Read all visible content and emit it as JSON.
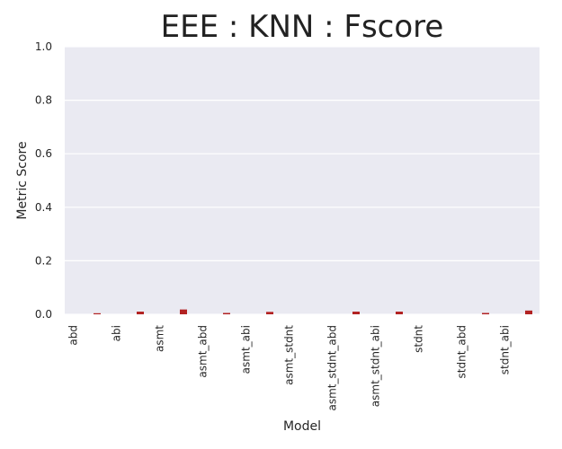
{
  "chart_data": {
    "type": "bar",
    "title": "EEE : KNN : Fscore",
    "xlabel": "Model",
    "ylabel": "Metric Score",
    "categories": [
      "abd",
      "abi",
      "asmt",
      "asmt_abd",
      "asmt_abi",
      "asmt_stdnt",
      "asmt_stdnt_abd",
      "asmt_stdnt_abi",
      "stdnt",
      "stdnt_abd",
      "stdnt_abi"
    ],
    "values": [
      0.004,
      0.01,
      0.018,
      0.005,
      0.009,
      0.0,
      0.01,
      0.01,
      0.0,
      0.005,
      0.014
    ],
    "ylim": [
      0,
      1.0
    ],
    "yticks": [
      "0.0",
      "0.2",
      "0.4",
      "0.6",
      "0.8",
      "1.0"
    ],
    "grid": true,
    "colors": {
      "plot_background": "#eaeaf2",
      "grid": "#ffffff",
      "bar": "#b22222"
    }
  }
}
